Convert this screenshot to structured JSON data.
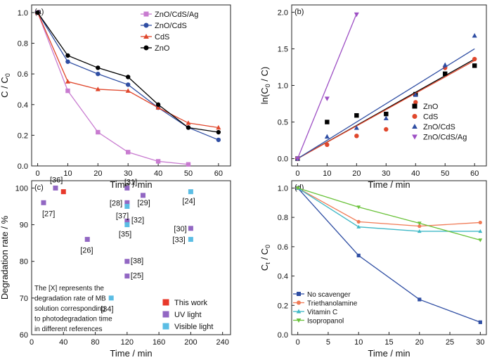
{
  "chart_data": [
    {
      "panel": "(a)",
      "type": "line",
      "xlabel": "Time / min",
      "ylabel_base": "C / C",
      "ylabel_sub": "0",
      "xlim": [
        -2,
        64
      ],
      "ylim": [
        0,
        1.05
      ],
      "xticks": [
        0,
        10,
        20,
        30,
        40,
        50,
        60
      ],
      "yticks": [
        0.0,
        0.2,
        0.4,
        0.6,
        0.8,
        1.0
      ],
      "ytick_decimals": 1,
      "legend_position": "top-right",
      "grid": false,
      "series": [
        {
          "name": "ZnO/CdS/Ag",
          "color": "#c87bd0",
          "marker": "square",
          "x": [
            0,
            10,
            20,
            30,
            40,
            50
          ],
          "y": [
            1.0,
            0.49,
            0.22,
            0.09,
            0.03,
            0.01
          ]
        },
        {
          "name": "ZnO/CdS",
          "color": "#2f4ea3",
          "marker": "circle",
          "x": [
            0,
            10,
            20,
            30,
            40,
            50,
            60
          ],
          "y": [
            1.0,
            0.68,
            0.6,
            0.53,
            0.38,
            0.25,
            0.17
          ]
        },
        {
          "name": "CdS",
          "color": "#e0472c",
          "marker": "triangle",
          "x": [
            0,
            10,
            20,
            30,
            40,
            50,
            60
          ],
          "y": [
            1.0,
            0.55,
            0.5,
            0.49,
            0.38,
            0.28,
            0.25
          ]
        },
        {
          "name": "ZnO",
          "color": "#000000",
          "marker": "circle",
          "x": [
            0,
            10,
            20,
            30,
            40,
            50,
            60
          ],
          "y": [
            1.0,
            0.72,
            0.64,
            0.58,
            0.4,
            0.25,
            0.22
          ]
        }
      ]
    },
    {
      "panel": "(b)",
      "type": "scatter",
      "xlabel": "Time / min",
      "ylabel_base": "ln(C",
      "ylabel_sub": "0",
      "ylabel_tail": " / C)",
      "xlim": [
        -2,
        64
      ],
      "ylim": [
        -0.1,
        2.1
      ],
      "xticks": [
        0,
        10,
        20,
        30,
        40,
        50,
        60
      ],
      "yticks": [
        0.0,
        0.5,
        1.0,
        1.5,
        2.0
      ],
      "ytick_decimals": 1,
      "legend_position": "bottom-right",
      "grid": false,
      "series": [
        {
          "name": "ZnO",
          "color": "#000000",
          "marker": "square",
          "x": [
            0,
            10,
            20,
            30,
            40,
            50,
            60
          ],
          "y": [
            0.0,
            0.5,
            0.59,
            0.61,
            0.88,
            1.16,
            1.27
          ],
          "fit": [
            [
              0,
              0.0
            ],
            [
              60,
              1.36
            ]
          ]
        },
        {
          "name": "CdS",
          "color": "#e0472c",
          "marker": "circle",
          "x": [
            0,
            10,
            20,
            30,
            40,
            50,
            60
          ],
          "y": [
            0.0,
            0.19,
            0.31,
            0.4,
            0.77,
            1.24,
            1.36
          ],
          "fit": [
            [
              0,
              0.0
            ],
            [
              60,
              1.34
            ]
          ]
        },
        {
          "name": "ZnO/CdS",
          "color": "#2f4ea3",
          "marker": "triangle",
          "x": [
            0,
            10,
            20,
            30,
            40,
            50,
            60
          ],
          "y": [
            0.0,
            0.3,
            0.42,
            0.55,
            0.87,
            1.28,
            1.68
          ],
          "fit": [
            [
              0,
              0.0
            ],
            [
              60,
              1.5
            ]
          ]
        },
        {
          "name": "ZnO/CdS/Ag",
          "color": "#9d4fc4",
          "marker": "triangle-down",
          "x": [
            0,
            10,
            20
          ],
          "y": [
            0.0,
            0.82,
            1.97
          ],
          "fit": [
            [
              0,
              0.0
            ],
            [
              20,
              1.98
            ]
          ]
        }
      ]
    },
    {
      "panel": "(c)",
      "type": "scatter",
      "xlabel": "Time / min",
      "ylabel": "Degradation rate / %",
      "xlim": [
        0,
        250
      ],
      "ylim": [
        60,
        102
      ],
      "xticks": [
        0,
        40,
        80,
        120,
        160,
        200,
        240
      ],
      "yticks": [
        60,
        70,
        80,
        90,
        100
      ],
      "ytick_decimals": 0,
      "legend_position": "bottom-right",
      "grid": false,
      "note": [
        "The [X] represents the",
        "degradation rate of MB",
        "solution corresponding",
        "to photodegradation time",
        "in different references"
      ],
      "series": [
        {
          "name": "This work",
          "color": "#e8392b",
          "marker": "square",
          "x": [
            40
          ],
          "y": [
            99
          ],
          "labels": [
            ""
          ]
        },
        {
          "name": "UV light",
          "color": "#9267c3",
          "marker": "square",
          "x": [
            15,
            30,
            70,
            120,
            120,
            120,
            120,
            120,
            140,
            200
          ],
          "y": [
            96,
            100,
            86,
            100,
            96,
            91,
            80,
            76,
            98,
            89
          ],
          "labels": [
            "[27]",
            "[36]",
            "[26]",
            "[31]",
            "[28]",
            "[32]",
            "[38]",
            "[25]",
            "[29]",
            "[30]"
          ]
        },
        {
          "name": "Visible light",
          "color": "#5bbde4",
          "marker": "square",
          "x": [
            100,
            120,
            120,
            200,
            200
          ],
          "y": [
            70,
            95,
            90,
            99,
            86
          ],
          "labels": [
            "[34]",
            "[37]",
            "[35]",
            "[24]",
            "[33]"
          ]
        }
      ]
    },
    {
      "panel": "(d)",
      "type": "line",
      "xlabel": "Time / min",
      "ylabel_base": "C",
      "ylabel_sub": "t",
      "ylabel_tail": " / C",
      "ylabel_sub2": "0",
      "xlim": [
        -1,
        31
      ],
      "ylim": [
        0,
        1.05
      ],
      "xticks": [
        0,
        5,
        10,
        15,
        20,
        25,
        30
      ],
      "yticks": [
        0.0,
        0.2,
        0.4,
        0.6,
        0.8,
        1.0
      ],
      "ytick_decimals": 1,
      "legend_position": "bottom-left",
      "grid": false,
      "series": [
        {
          "name": "No scavenger",
          "color": "#2f4ea3",
          "marker": "square",
          "x": [
            0,
            10,
            20,
            30
          ],
          "y": [
            1.0,
            0.54,
            0.24,
            0.085
          ]
        },
        {
          "name": "Triethanolamine",
          "color": "#f07a55",
          "marker": "circle",
          "x": [
            0,
            10,
            20,
            30
          ],
          "y": [
            1.0,
            0.77,
            0.74,
            0.765
          ]
        },
        {
          "name": "Vitamin C",
          "color": "#3fb8c6",
          "marker": "triangle",
          "x": [
            0,
            10,
            20,
            30
          ],
          "y": [
            1.0,
            0.735,
            0.705,
            0.705
          ]
        },
        {
          "name": "Isopropanol",
          "color": "#6ac23a",
          "marker": "triangle-down",
          "x": [
            0,
            10,
            20,
            30
          ],
          "y": [
            1.0,
            0.87,
            0.76,
            0.645
          ]
        }
      ]
    }
  ]
}
